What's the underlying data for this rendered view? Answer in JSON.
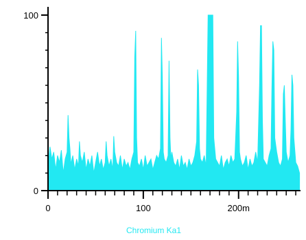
{
  "chart_data": {
    "type": "area",
    "title": "",
    "xlabel": "Chromium Ka1",
    "ylabel": "",
    "xlim": [
      0,
      265
    ],
    "ylim": [
      0,
      100
    ],
    "x_ticks": [
      {
        "value": 0,
        "label": "0"
      },
      {
        "value": 100,
        "label": "100"
      },
      {
        "value": 200,
        "label": "200m"
      }
    ],
    "y_ticks": [
      {
        "value": 0,
        "label": "0"
      },
      {
        "value": 100,
        "label": "100"
      }
    ],
    "grid": false,
    "colors": {
      "series": "#22e8f2",
      "axis": "#000000",
      "xlabel": "#22e8f2"
    },
    "series": [
      {
        "x": [
          0,
          2,
          4,
          6,
          8,
          10,
          12,
          14,
          16,
          18,
          20,
          21,
          22,
          23,
          24,
          26,
          28,
          30,
          32,
          33,
          34,
          36,
          38,
          40,
          42,
          44,
          46,
          48,
          50,
          52,
          54,
          56,
          58,
          60,
          61,
          62,
          64,
          66,
          68,
          69,
          70,
          72,
          74,
          76,
          78,
          80,
          82,
          84,
          86,
          88,
          90,
          91,
          92,
          93,
          94,
          96,
          98,
          100,
          102,
          104,
          106,
          108,
          110,
          112,
          114,
          116,
          118,
          119,
          120,
          121,
          122,
          124,
          126,
          127,
          128,
          129,
          130,
          132,
          134,
          136,
          138,
          140,
          142,
          144,
          146,
          148,
          150,
          152,
          154,
          156,
          157,
          158,
          159,
          160,
          162,
          164,
          166,
          168,
          169,
          170,
          171,
          172,
          173,
          174,
          176,
          178,
          180,
          182,
          184,
          186,
          188,
          190,
          192,
          194,
          196,
          198,
          199,
          200,
          201,
          202,
          204,
          206,
          208,
          210,
          212,
          214,
          216,
          218,
          220,
          222,
          223,
          224,
          225,
          226,
          228,
          230,
          232,
          234,
          235,
          236,
          237,
          238,
          240,
          242,
          244,
          246,
          247,
          248,
          249,
          250,
          252,
          254,
          255,
          256,
          257,
          258,
          260,
          262,
          264
        ],
        "values": [
          14,
          25,
          18,
          22,
          12,
          20,
          16,
          23,
          10,
          18,
          22,
          43,
          30,
          24,
          15,
          20,
          12,
          18,
          14,
          28,
          20,
          16,
          22,
          12,
          18,
          14,
          20,
          10,
          16,
          22,
          14,
          18,
          12,
          16,
          28,
          20,
          14,
          18,
          12,
          31,
          22,
          16,
          14,
          20,
          12,
          18,
          14,
          16,
          12,
          18,
          22,
          76,
          91,
          30,
          16,
          14,
          18,
          12,
          20,
          14,
          16,
          18,
          12,
          16,
          20,
          18,
          24,
          87,
          65,
          22,
          18,
          16,
          20,
          74,
          30,
          18,
          22,
          16,
          14,
          18,
          12,
          20,
          14,
          16,
          12,
          18,
          14,
          16,
          20,
          28,
          69,
          60,
          24,
          18,
          16,
          20,
          14,
          100,
          100,
          100,
          100,
          100,
          100,
          30,
          18,
          16,
          14,
          20,
          12,
          16,
          18,
          14,
          20,
          16,
          18,
          45,
          85,
          65,
          22,
          18,
          14,
          16,
          20,
          12,
          18,
          14,
          16,
          22,
          16,
          60,
          94,
          94,
          40,
          18,
          16,
          14,
          20,
          24,
          58,
          85,
          80,
          30,
          22,
          16,
          14,
          18,
          55,
          60,
          40,
          22,
          16,
          20,
          35,
          66,
          60,
          30,
          16,
          14,
          10
        ]
      }
    ]
  }
}
